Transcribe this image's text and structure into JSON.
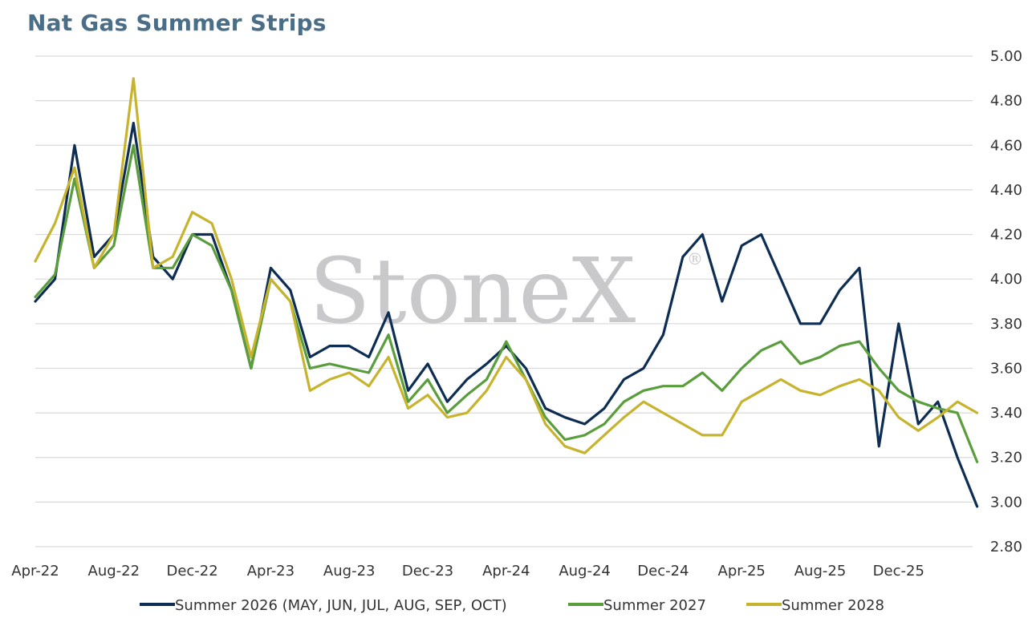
{
  "title": "Nat Gas Summer Strips",
  "watermark": "StoneX",
  "watermark_mark": "®",
  "chart_data": {
    "type": "line",
    "title": "Nat Gas Summer Strips",
    "xlabel": "",
    "ylabel": "",
    "ylim": [
      2.8,
      5.0
    ],
    "yticks": [
      2.8,
      3.0,
      3.2,
      3.4,
      3.6,
      3.8,
      4.0,
      4.2,
      4.4,
      4.6,
      4.8,
      5.0
    ],
    "ytick_labels": [
      "2.80",
      "3.00",
      "3.20",
      "3.40",
      "3.60",
      "3.80",
      "4.00",
      "4.20",
      "4.40",
      "4.60",
      "4.80",
      "5.00"
    ],
    "xticks": [
      "Apr-22",
      "Aug-22",
      "Dec-22",
      "Apr-23",
      "Aug-23",
      "Dec-23",
      "Apr-24",
      "Aug-24",
      "Dec-24",
      "Apr-25",
      "Aug-25",
      "Dec-25"
    ],
    "y_axis_side": "right",
    "grid": "horizontal",
    "legend_position": "bottom",
    "x_start": "Apr-22",
    "series": [
      {
        "name": "Summer 2026 (MAY, JUN, JUL, AUG, SEP, OCT)",
        "color": "#0d2d53",
        "x": [
          "Apr-22",
          "May-22",
          "Jun-22",
          "Jul-22",
          "Aug-22",
          "Sep-22",
          "Oct-22",
          "Nov-22",
          "Dec-22",
          "Jan-23",
          "Feb-23",
          "Mar-23",
          "Apr-23",
          "May-23",
          "Jun-23",
          "Jul-23",
          "Aug-23",
          "Sep-23",
          "Oct-23",
          "Nov-23",
          "Dec-23",
          "Jan-24",
          "Feb-24",
          "Mar-24",
          "Apr-24",
          "May-24",
          "Jun-24",
          "Jul-24",
          "Aug-24",
          "Sep-24",
          "Oct-24",
          "Nov-24",
          "Dec-24",
          "Jan-25",
          "Feb-25",
          "Mar-25",
          "Apr-25",
          "May-25",
          "Jun-25",
          "Jul-25",
          "Aug-25",
          "Sep-25",
          "Oct-25",
          "Nov-25",
          "Dec-25",
          "Jan-26",
          "Feb-26",
          "Mar-26",
          "Apr-26"
        ],
        "values": [
          3.9,
          4.0,
          4.6,
          4.1,
          4.2,
          4.7,
          4.1,
          4.0,
          4.2,
          4.2,
          3.95,
          3.6,
          4.05,
          3.95,
          3.65,
          3.7,
          3.7,
          3.65,
          3.85,
          3.5,
          3.62,
          3.45,
          3.55,
          3.62,
          3.7,
          3.6,
          3.42,
          3.38,
          3.35,
          3.42,
          3.55,
          3.6,
          3.75,
          4.1,
          4.2,
          3.9,
          4.15,
          4.2,
          4.0,
          3.8,
          3.8,
          3.95,
          4.05,
          3.25,
          3.8,
          3.35,
          3.45,
          3.2,
          2.98
        ]
      },
      {
        "name": "Summer 2027",
        "color": "#5a9d3c",
        "x": [
          "Apr-22",
          "May-22",
          "Jun-22",
          "Jul-22",
          "Aug-22",
          "Sep-22",
          "Oct-22",
          "Nov-22",
          "Dec-22",
          "Jan-23",
          "Feb-23",
          "Mar-23",
          "Apr-23",
          "May-23",
          "Jun-23",
          "Jul-23",
          "Aug-23",
          "Sep-23",
          "Oct-23",
          "Nov-23",
          "Dec-23",
          "Jan-24",
          "Feb-24",
          "Mar-24",
          "Apr-24",
          "May-24",
          "Jun-24",
          "Jul-24",
          "Aug-24",
          "Sep-24",
          "Oct-24",
          "Nov-24",
          "Dec-24",
          "Jan-25",
          "Feb-25",
          "Mar-25",
          "Apr-25",
          "May-25",
          "Jun-25",
          "Jul-25",
          "Aug-25",
          "Sep-25",
          "Oct-25",
          "Nov-25",
          "Dec-25",
          "Jan-26",
          "Feb-26",
          "Mar-26",
          "Apr-26"
        ],
        "values": [
          3.92,
          4.02,
          4.45,
          4.05,
          4.15,
          4.6,
          4.05,
          4.05,
          4.2,
          4.15,
          3.95,
          3.6,
          4.0,
          3.9,
          3.6,
          3.62,
          3.6,
          3.58,
          3.75,
          3.45,
          3.55,
          3.4,
          3.48,
          3.55,
          3.72,
          3.55,
          3.38,
          3.28,
          3.3,
          3.35,
          3.45,
          3.5,
          3.52,
          3.52,
          3.58,
          3.5,
          3.6,
          3.68,
          3.72,
          3.62,
          3.65,
          3.7,
          3.72,
          3.6,
          3.5,
          3.45,
          3.42,
          3.4,
          3.18
        ]
      },
      {
        "name": "Summer 2028",
        "color": "#c6b42e",
        "x": [
          "Apr-22",
          "May-22",
          "Jun-22",
          "Jul-22",
          "Aug-22",
          "Sep-22",
          "Oct-22",
          "Nov-22",
          "Dec-22",
          "Jan-23",
          "Feb-23",
          "Mar-23",
          "Apr-23",
          "May-23",
          "Jun-23",
          "Jul-23",
          "Aug-23",
          "Sep-23",
          "Oct-23",
          "Nov-23",
          "Dec-23",
          "Jan-24",
          "Feb-24",
          "Mar-24",
          "Apr-24",
          "May-24",
          "Jun-24",
          "Jul-24",
          "Aug-24",
          "Sep-24",
          "Oct-24",
          "Nov-24",
          "Dec-24",
          "Jan-25",
          "Feb-25",
          "Mar-25",
          "Apr-25",
          "May-25",
          "Jun-25",
          "Jul-25",
          "Aug-25",
          "Sep-25",
          "Oct-25",
          "Nov-25",
          "Dec-25",
          "Jan-26",
          "Feb-26",
          "Mar-26",
          "Apr-26"
        ],
        "values": [
          4.08,
          4.25,
          4.5,
          4.05,
          4.2,
          4.9,
          4.05,
          4.1,
          4.3,
          4.25,
          4.0,
          3.65,
          4.0,
          3.9,
          3.5,
          3.55,
          3.58,
          3.52,
          3.65,
          3.42,
          3.48,
          3.38,
          3.4,
          3.5,
          3.65,
          3.55,
          3.35,
          3.25,
          3.22,
          3.3,
          3.38,
          3.45,
          3.4,
          3.35,
          3.3,
          3.3,
          3.45,
          3.5,
          3.55,
          3.5,
          3.48,
          3.52,
          3.55,
          3.5,
          3.38,
          3.32,
          3.38,
          3.45,
          3.4
        ]
      }
    ]
  }
}
